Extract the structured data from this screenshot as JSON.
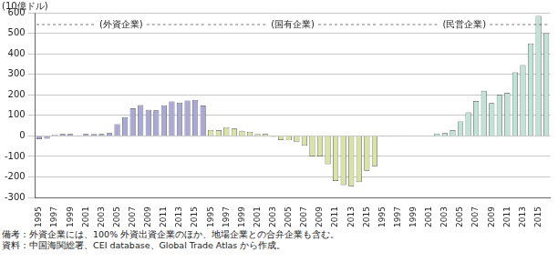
{
  "chart_data": {
    "type": "bar",
    "y_label": "(10億ドル)",
    "notes": [
      "備考：外資企業には、100% 外資出資企業のほか、地場企業との合弁企業も含む。",
      "資料：中国海関総署、CEI database、Global Trade Atlas から作成。"
    ],
    "categories": [
      "1995",
      null,
      "1997",
      null,
      "1999",
      null,
      "2001",
      null,
      "2003",
      null,
      "2005",
      null,
      "2007",
      null,
      "2009",
      null,
      "2011",
      null,
      "2013",
      null,
      "2015",
      null,
      "1995",
      null,
      "1997",
      null,
      "1999",
      null,
      "2001",
      null,
      "2003",
      null,
      "2005",
      null,
      "2007",
      null,
      "2009",
      null,
      "2011",
      null,
      "2013",
      null,
      "2015",
      null,
      "1995",
      null,
      "1997",
      null,
      "1999",
      null,
      "2001",
      null,
      "2003",
      null,
      "2005",
      null,
      "2007",
      null,
      "2009",
      null,
      "2011",
      null,
      "2013",
      null,
      "2015",
      null
    ],
    "series": [
      {
        "name": "(外資企業)",
        "color": "#a9a9d6",
        "values": [
          -16,
          -14,
          5,
          9,
          9,
          1,
          9,
          10,
          9,
          14,
          57,
          91,
          135,
          150,
          127,
          125,
          149,
          168,
          162,
          172,
          175,
          148,
          null,
          null,
          null,
          null,
          null,
          null,
          null,
          null,
          null,
          null,
          null,
          null,
          null,
          null,
          null,
          null,
          null,
          null,
          null,
          null,
          null,
          null,
          null,
          null,
          null,
          null,
          null,
          null,
          null,
          null,
          null,
          null,
          null,
          null,
          null,
          null,
          null,
          null,
          null,
          null,
          null,
          null,
          null,
          null
        ]
      },
      {
        "name": "(国有企業)",
        "color": "#d9e3a4",
        "values": [
          null,
          null,
          null,
          null,
          null,
          null,
          null,
          null,
          null,
          null,
          null,
          null,
          null,
          null,
          null,
          null,
          null,
          null,
          null,
          null,
          null,
          null,
          29,
          28,
          42,
          36,
          25,
          20,
          10,
          9,
          -5,
          -20,
          -22,
          -30,
          -48,
          -100,
          -100,
          -138,
          -220,
          -240,
          -245,
          -225,
          -170,
          -148,
          null,
          null,
          null,
          null,
          null,
          null,
          null,
          null,
          null,
          null,
          null,
          null,
          null,
          null,
          null,
          null,
          null,
          null,
          null,
          null,
          null,
          null
        ]
      },
      {
        "name": "(民営企業)",
        "color": "#bfe3d6",
        "values": [
          null,
          null,
          null,
          null,
          null,
          null,
          null,
          null,
          null,
          null,
          null,
          null,
          null,
          null,
          null,
          null,
          null,
          null,
          null,
          null,
          null,
          null,
          null,
          null,
          null,
          null,
          null,
          null,
          null,
          null,
          null,
          null,
          null,
          null,
          null,
          null,
          null,
          null,
          null,
          null,
          null,
          null,
          null,
          null,
          1,
          1,
          2,
          2,
          3,
          2,
          3,
          12,
          14,
          28,
          71,
          115,
          170,
          220,
          160,
          200,
          210,
          310,
          345,
          450,
          585,
          500
        ]
      }
    ],
    "ylim": [
      -300,
      600
    ],
    "yticks": [
      -300,
      -200,
      -100,
      0,
      100,
      200,
      300,
      400,
      500,
      600
    ],
    "grid": true
  }
}
